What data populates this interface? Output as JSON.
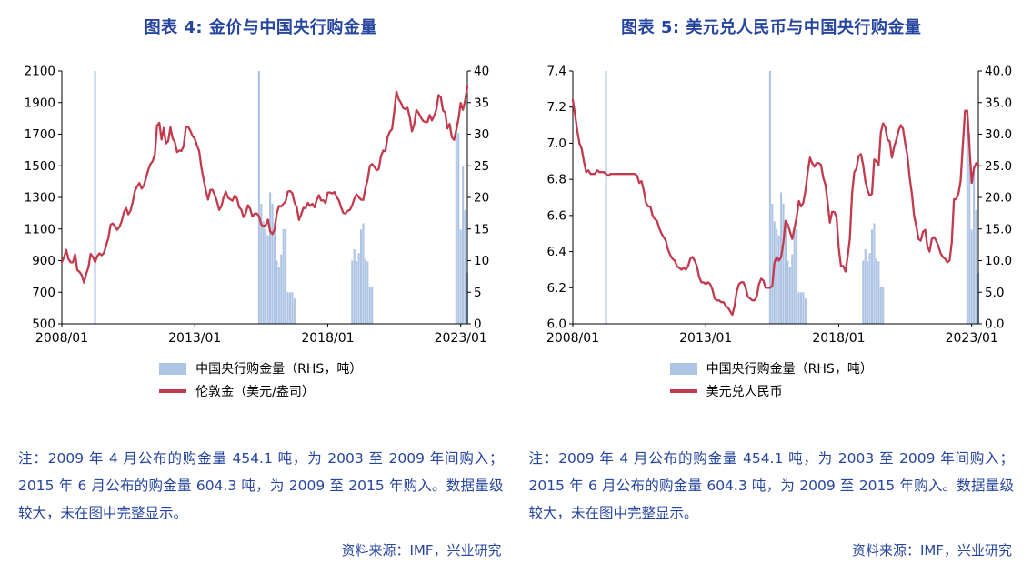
{
  "accent": {
    "navy": "#2645A0",
    "red": "#C23A4E",
    "bar_blue": "#AEC4E4",
    "axis": "#000000"
  },
  "chart_data": [
    {
      "type": "bar+line combo",
      "title": "图表 4:  金价与中国央行购金量",
      "x_start": "2008-01",
      "x_end": "2023-04",
      "x_tick_labels": [
        "2008/01",
        "2013/01",
        "2018/01",
        "2023/01"
      ],
      "left_axis": {
        "min": 500,
        "max": 2100,
        "tick_labels": [
          "500",
          "700",
          "900",
          "1100",
          "1300",
          "1500",
          "1700",
          "1900",
          "2100"
        ]
      },
      "right_axis": {
        "min": 0,
        "max": 40,
        "tick_labels": [
          "0",
          "5",
          "10",
          "15",
          "20",
          "25",
          "30",
          "35",
          "40"
        ]
      },
      "series": [
        {
          "name": "中国央行购金量（RHS，吨）",
          "type": "bar",
          "axis": "right",
          "color": "#AEC4E4",
          "points": [
            [
              "2009-04",
              454.1
            ],
            [
              "2015-06",
              604.3
            ],
            [
              "2015-07",
              19
            ],
            [
              "2015-08",
              16.2
            ],
            [
              "2015-09",
              15
            ],
            [
              "2015-10",
              14
            ],
            [
              "2015-11",
              20.8
            ],
            [
              "2015-12",
              19
            ],
            [
              "2016-01",
              16
            ],
            [
              "2016-02",
              10
            ],
            [
              "2016-03",
              9
            ],
            [
              "2016-04",
              11
            ],
            [
              "2016-05",
              15
            ],
            [
              "2016-06",
              15
            ],
            [
              "2016-07",
              5
            ],
            [
              "2016-08",
              5
            ],
            [
              "2016-09",
              5
            ],
            [
              "2016-10",
              4
            ],
            [
              "2018-12",
              10
            ],
            [
              "2019-01",
              11.8
            ],
            [
              "2019-02",
              9.9
            ],
            [
              "2019-03",
              11.2
            ],
            [
              "2019-04",
              14.9
            ],
            [
              "2019-05",
              15.9
            ],
            [
              "2019-06",
              10.3
            ],
            [
              "2019-07",
              9.9
            ],
            [
              "2019-08",
              5.9
            ],
            [
              "2019-09",
              5.9
            ],
            [
              "2022-11",
              32
            ],
            [
              "2022-12",
              30.2
            ],
            [
              "2023-01",
              14.9
            ],
            [
              "2023-02",
              24.9
            ],
            [
              "2023-03",
              18
            ],
            [
              "2023-04",
              8.1
            ]
          ]
        },
        {
          "name": "伦敦金（美元/盎司）",
          "type": "line",
          "axis": "left",
          "color": "#C23A4E",
          "monthly_from": "2008-01",
          "values": [
            890,
            922,
            968,
            910,
            889,
            889,
            940,
            839,
            829,
            807,
            761,
            816,
            858,
            943,
            924,
            890,
            929,
            946,
            934,
            949,
            997,
            1043,
            1127,
            1135,
            1118,
            1095,
            1113,
            1149,
            1205,
            1233,
            1193,
            1216,
            1271,
            1342,
            1370,
            1391,
            1356,
            1373,
            1424,
            1474,
            1511,
            1529,
            1573,
            1756,
            1772,
            1666,
            1739,
            1641,
            1656,
            1743,
            1674,
            1650,
            1587,
            1597,
            1594,
            1626,
            1745,
            1747,
            1721,
            1688,
            1671,
            1628,
            1593,
            1487,
            1414,
            1343,
            1286,
            1347,
            1348,
            1316,
            1275,
            1221,
            1244,
            1300,
            1336,
            1298,
            1288,
            1279,
            1311,
            1295,
            1238,
            1222,
            1175,
            1200,
            1251,
            1227,
            1178,
            1197,
            1198,
            1181,
            1128,
            1117,
            1125,
            1159,
            1086,
            1068,
            1097,
            1200,
            1246,
            1242,
            1260,
            1276,
            1337,
            1340,
            1327,
            1267,
            1238,
            1157,
            1192,
            1234,
            1231,
            1266,
            1246,
            1260,
            1237,
            1283,
            1314,
            1280,
            1282,
            1264,
            1331,
            1331,
            1325,
            1334,
            1303,
            1281,
            1238,
            1202,
            1198,
            1215,
            1221,
            1250,
            1292,
            1320,
            1301,
            1286,
            1284,
            1359,
            1413,
            1500,
            1511,
            1495,
            1471,
            1479,
            1561,
            1597,
            1592,
            1683,
            1716,
            1732,
            1843,
            1969,
            1922,
            1900,
            1866,
            1858,
            1867,
            1808,
            1718,
            1762,
            1853,
            1835,
            1807,
            1784,
            1777,
            1777,
            1822,
            1787,
            1816,
            1856,
            1948,
            1934,
            1850,
            1837,
            1736,
            1765,
            1681,
            1664,
            1726,
            1797,
            1898,
            1854,
            1913,
            1999
          ]
        }
      ],
      "note": "注：2009 年 4 月公布的购金量 454.1 吨，为 2003 至 2009 年间购入；2015 年 6 月公布的购金量 604.3 吨，为 2009 至 2015 年购入。数据量级较大，未在图中完整显示。",
      "source": "资料来源：IMF，兴业研究"
    },
    {
      "type": "bar+line combo",
      "title": "图表 5:  美元兑人民币与中国央行购金量",
      "x_start": "2008-01",
      "x_end": "2023-04",
      "x_tick_labels": [
        "2008/01",
        "2013/01",
        "2018/01",
        "2023/01"
      ],
      "left_axis": {
        "min": 6.0,
        "max": 7.4,
        "tick_labels": [
          "6.0",
          "6.2",
          "6.4",
          "6.6",
          "6.8",
          "7.0",
          "7.2",
          "7.4"
        ]
      },
      "right_axis": {
        "min": 0,
        "max": 40,
        "tick_labels": [
          "0.0",
          "5.0",
          "10.0",
          "15.0",
          "20.0",
          "25.0",
          "30.0",
          "35.0",
          "40.0"
        ]
      },
      "series": [
        {
          "name": "中国央行购金量（RHS，吨）",
          "type": "bar",
          "axis": "right",
          "color": "#AEC4E4",
          "points": [
            [
              "2009-04",
              454.1
            ],
            [
              "2015-06",
              604.3
            ],
            [
              "2015-07",
              19
            ],
            [
              "2015-08",
              16.2
            ],
            [
              "2015-09",
              15
            ],
            [
              "2015-10",
              14
            ],
            [
              "2015-11",
              20.8
            ],
            [
              "2015-12",
              19
            ],
            [
              "2016-01",
              16
            ],
            [
              "2016-02",
              10
            ],
            [
              "2016-03",
              9
            ],
            [
              "2016-04",
              11
            ],
            [
              "2016-05",
              15
            ],
            [
              "2016-06",
              15
            ],
            [
              "2016-07",
              5
            ],
            [
              "2016-08",
              5
            ],
            [
              "2016-09",
              5
            ],
            [
              "2016-10",
              4
            ],
            [
              "2018-12",
              10
            ],
            [
              "2019-01",
              11.8
            ],
            [
              "2019-02",
              9.9
            ],
            [
              "2019-03",
              11.2
            ],
            [
              "2019-04",
              14.9
            ],
            [
              "2019-05",
              15.9
            ],
            [
              "2019-06",
              10.3
            ],
            [
              "2019-07",
              9.9
            ],
            [
              "2019-08",
              5.9
            ],
            [
              "2019-09",
              5.9
            ],
            [
              "2022-11",
              32
            ],
            [
              "2022-12",
              30.2
            ],
            [
              "2023-01",
              14.9
            ],
            [
              "2023-02",
              24.9
            ],
            [
              "2023-03",
              18
            ],
            [
              "2023-04",
              8.1
            ]
          ]
        },
        {
          "name": "美元兑人民币",
          "type": "line",
          "axis": "left",
          "color": "#C23A4E",
          "monthly_from": "2008-01",
          "values": [
            7.24,
            7.16,
            7.07,
            7.0,
            6.97,
            6.9,
            6.84,
            6.85,
            6.83,
            6.83,
            6.83,
            6.85,
            6.84,
            6.84,
            6.84,
            6.83,
            6.82,
            6.83,
            6.83,
            6.83,
            6.83,
            6.83,
            6.83,
            6.83,
            6.83,
            6.83,
            6.83,
            6.83,
            6.83,
            6.82,
            6.78,
            6.79,
            6.74,
            6.67,
            6.65,
            6.65,
            6.6,
            6.58,
            6.57,
            6.53,
            6.5,
            6.48,
            6.46,
            6.41,
            6.38,
            6.36,
            6.35,
            6.32,
            6.31,
            6.3,
            6.31,
            6.3,
            6.32,
            6.36,
            6.37,
            6.35,
            6.32,
            6.26,
            6.23,
            6.23,
            6.22,
            6.23,
            6.22,
            6.19,
            6.14,
            6.13,
            6.13,
            6.12,
            6.12,
            6.1,
            6.09,
            6.07,
            6.05,
            6.1,
            6.18,
            6.22,
            6.23,
            6.23,
            6.2,
            6.15,
            6.14,
            6.13,
            6.13,
            6.15,
            6.22,
            6.25,
            6.24,
            6.2,
            6.2,
            6.2,
            6.21,
            6.34,
            6.37,
            6.35,
            6.37,
            6.45,
            6.57,
            6.55,
            6.51,
            6.47,
            6.53,
            6.59,
            6.68,
            6.65,
            6.67,
            6.74,
            6.84,
            6.92,
            6.89,
            6.87,
            6.89,
            6.89,
            6.88,
            6.81,
            6.77,
            6.67,
            6.56,
            6.62,
            6.62,
            6.59,
            6.42,
            6.32,
            6.32,
            6.29,
            6.37,
            6.47,
            6.72,
            6.84,
            6.86,
            6.93,
            6.94,
            6.88,
            6.79,
            6.74,
            6.71,
            6.72,
            6.91,
            6.9,
            6.88,
            7.06,
            7.11,
            7.09,
            7.02,
            7.01,
            6.92,
            6.98,
            7.02,
            7.07,
            7.1,
            7.08,
            7.0,
            6.93,
            6.81,
            6.72,
            6.6,
            6.54,
            6.47,
            6.46,
            6.51,
            6.52,
            6.43,
            6.4,
            6.47,
            6.48,
            6.46,
            6.43,
            6.39,
            6.37,
            6.36,
            6.34,
            6.35,
            6.45,
            6.69,
            6.69,
            6.72,
            6.79,
            6.99,
            7.18,
            7.18,
            6.98,
            6.78,
            6.86,
            6.89,
            6.88
          ]
        }
      ],
      "note": "注：2009 年 4 月公布的购金量 454.1 吨，为 2003 至 2009 年间购入；2015 年 6 月公布的购金量 604.3 吨，为 2009 至 2015 年购入。数据量级较大，未在图中完整显示。",
      "source": "资料来源：IMF，兴业研究"
    }
  ]
}
